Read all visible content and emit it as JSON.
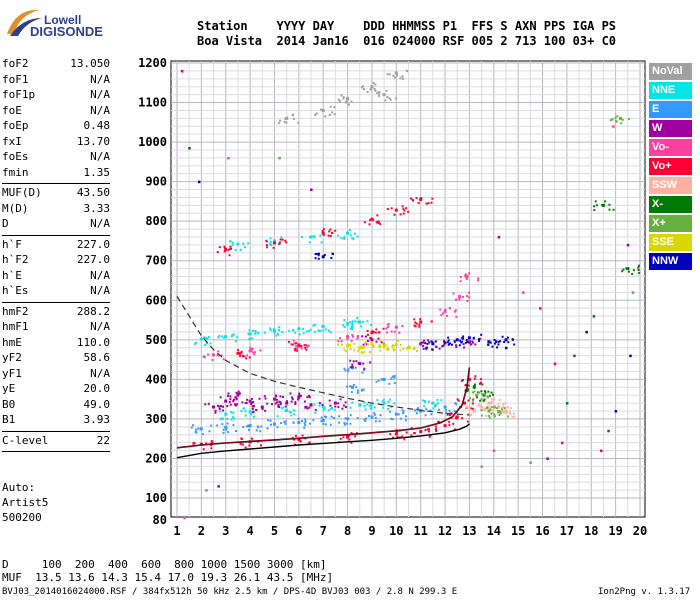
{
  "logo": {
    "line1": "Lowell",
    "line2": "DIGISONDE"
  },
  "header": {
    "line1": "Station    YYYY DAY    DDD HHMMSS P1  FFS S AXN PPS IGA PS",
    "line2": "Boa Vista  2014 Jan16  016 024000 RSF 005 2 713 100 03+ C0"
  },
  "params": {
    "group1": [
      {
        "label": "foF2",
        "value": "13.050"
      },
      {
        "label": "foF1",
        "value": "N/A"
      },
      {
        "label": "foF1p",
        "value": "N/A"
      },
      {
        "label": "foE",
        "value": "N/A"
      },
      {
        "label": "foEp",
        "value": "0.48"
      },
      {
        "label": "fxI",
        "value": "13.70"
      },
      {
        "label": "foEs",
        "value": "N/A"
      },
      {
        "label": "fmin",
        "value": "1.35"
      }
    ],
    "group2": [
      {
        "label": "MUF(D)",
        "value": "43.50"
      },
      {
        "label": "M(D)",
        "value": "3.33"
      },
      {
        "label": "D",
        "value": "N/A"
      }
    ],
    "group3": [
      {
        "label": "h`F",
        "value": "227.0"
      },
      {
        "label": "h`F2",
        "value": "227.0"
      },
      {
        "label": "h`E",
        "value": "N/A"
      },
      {
        "label": "h`Es",
        "value": "N/A"
      }
    ],
    "group4": [
      {
        "label": "hmF2",
        "value": "288.2"
      },
      {
        "label": "hmF1",
        "value": "N/A"
      },
      {
        "label": "hmE",
        "value": "110.0"
      },
      {
        "label": "yF2",
        "value": "58.6"
      },
      {
        "label": "yF1",
        "value": "N/A"
      },
      {
        "label": "yE",
        "value": "20.0"
      },
      {
        "label": "B0",
        "value": "49.0"
      },
      {
        "label": "B1",
        "value": "3.93"
      }
    ],
    "group5": [
      {
        "label": "C-level",
        "value": "22"
      }
    ]
  },
  "auto": {
    "line1": "Auto:",
    "line2": "Artist5",
    "line3": "500200"
  },
  "legend": [
    {
      "label": "NoVal",
      "color": "#a0a0a0"
    },
    {
      "label": "NNE",
      "color": "#00e5e5"
    },
    {
      "label": "E",
      "color": "#3399ff"
    },
    {
      "label": "W",
      "color": "#a000a0"
    },
    {
      "label": "Vo-",
      "color": "#ff40a0"
    },
    {
      "label": "Vo+",
      "color": "#ff0033"
    },
    {
      "label": "SSW",
      "color": "#ffb0a0"
    },
    {
      "label": "X-",
      "color": "#007a00"
    },
    {
      "label": "X+",
      "color": "#66b040"
    },
    {
      "label": "SSE",
      "color": "#d8d800"
    },
    {
      "label": "NNW",
      "color": "#0000c0"
    }
  ],
  "footer": {
    "line1": "D     100  200  400  600  800 1000 1500 3000 [km]",
    "line2": "MUF  13.5 13.6 14.3 15.4 17.0 19.3 26.1 43.5 [MHz]",
    "file": "BVJ03_2014016024000.RSF / 384fx512h 50 kHz 2.5 km / DPS-4D BVJ03 003 / 2.8 N 299.3 E",
    "version": "Ion2Png v. 1.3.17"
  },
  "chart_data": {
    "type": "scatter",
    "xlim": [
      1,
      20
    ],
    "ylim": [
      80,
      1200
    ],
    "x_ticks": [
      "1",
      "2",
      "3",
      "4",
      "5",
      "6",
      "7",
      "8",
      "9",
      "10",
      "11",
      "12",
      "13",
      "14",
      "15",
      "16",
      "17",
      "18",
      "19",
      "20"
    ],
    "y_ticks": [
      "80",
      "100",
      "200",
      "300",
      "400",
      "500",
      "600",
      "700",
      "800",
      "900",
      "1000",
      "1100",
      "1200"
    ],
    "xlabel": "",
    "ylabel": "",
    "grid": true,
    "series": [
      {
        "name": "NNE",
        "color": "#00e5e5",
        "points": [
          [
            2.0,
            502
          ],
          [
            3.0,
            508
          ],
          [
            4.0,
            515
          ],
          [
            5.0,
            522
          ],
          [
            6.0,
            528
          ],
          [
            7.0,
            534
          ],
          [
            8.0,
            540
          ],
          [
            8.5,
            545
          ],
          [
            3.5,
            742
          ],
          [
            5.0,
            750
          ],
          [
            6.5,
            760
          ],
          [
            8.0,
            770
          ],
          [
            3.0,
            312
          ],
          [
            4.0,
            318
          ],
          [
            5.5,
            322
          ],
          [
            7.0,
            330
          ],
          [
            8.5,
            335
          ],
          [
            9.5,
            340
          ],
          [
            11.5,
            340
          ]
        ]
      },
      {
        "name": "E",
        "color": "#3399ff",
        "points": [
          [
            2.0,
            275
          ],
          [
            3.0,
            279
          ],
          [
            4.0,
            283
          ],
          [
            5.0,
            287
          ],
          [
            6.0,
            291
          ],
          [
            7.0,
            296
          ],
          [
            8.0,
            300
          ],
          [
            9.0,
            305
          ],
          [
            10.0,
            312
          ],
          [
            11.0,
            320
          ],
          [
            12.0,
            330
          ],
          [
            8.2,
            380
          ],
          [
            8.2,
            430
          ],
          [
            9.5,
            400
          ]
        ]
      },
      {
        "name": "W",
        "color": "#a000a0",
        "points": [
          [
            2.5,
            330
          ],
          [
            3.0,
            345
          ],
          [
            3.5,
            360
          ],
          [
            4.0,
            345
          ],
          [
            4.5,
            330
          ],
          [
            5.0,
            350
          ],
          [
            5.5,
            340
          ],
          [
            6.0,
            355
          ],
          [
            6.5,
            335
          ],
          [
            7.5,
            340
          ],
          [
            8.5,
            440
          ],
          [
            9.0,
            500
          ],
          [
            11.0,
            490
          ],
          [
            12.0,
            492
          ],
          [
            13.0,
            495
          ]
        ]
      },
      {
        "name": "Vo-",
        "color": "#ff40a0",
        "points": [
          [
            2.5,
            462
          ],
          [
            4.0,
            472
          ],
          [
            6.0,
            488
          ],
          [
            8.0,
            508
          ],
          [
            10.0,
            532
          ],
          [
            12.0,
            572
          ],
          [
            12.6,
            610
          ],
          [
            12.9,
            660
          ]
        ]
      },
      {
        "name": "Vo+",
        "color": "#ff0033",
        "points": [
          [
            2.0,
            236
          ],
          [
            4.0,
            242
          ],
          [
            6.0,
            248
          ],
          [
            8.0,
            254
          ],
          [
            10.0,
            262
          ],
          [
            11.0,
            268
          ],
          [
            12.0,
            283
          ],
          [
            12.5,
            305
          ],
          [
            12.8,
            340
          ],
          [
            13.0,
            400
          ],
          [
            3.0,
            728
          ],
          [
            5.0,
            745
          ],
          [
            7.0,
            770
          ],
          [
            9.0,
            805
          ],
          [
            10.0,
            828
          ],
          [
            11.0,
            855
          ],
          [
            3.5,
            466
          ],
          [
            6.0,
            485
          ],
          [
            9.0,
            518
          ],
          [
            11.0,
            545
          ]
        ]
      },
      {
        "name": "SSW",
        "color": "#ffb0a0",
        "points": [
          [
            13.2,
            320
          ],
          [
            13.5,
            330
          ],
          [
            13.8,
            340
          ],
          [
            14.2,
            330
          ],
          [
            14.5,
            320
          ]
        ]
      },
      {
        "name": "X-",
        "color": "#007a00",
        "points": [
          [
            13.2,
            380
          ],
          [
            13.6,
            360
          ],
          [
            18.5,
            840
          ],
          [
            19.5,
            680
          ]
        ]
      },
      {
        "name": "X+",
        "color": "#66b040",
        "points": [
          [
            13.3,
            360
          ],
          [
            13.8,
            320
          ],
          [
            14.2,
            318
          ],
          [
            19.2,
            1060
          ]
        ]
      },
      {
        "name": "SSE",
        "color": "#d8d800",
        "points": [
          [
            8.0,
            485
          ],
          [
            8.5,
            480
          ],
          [
            9.0,
            490
          ],
          [
            9.5,
            485
          ],
          [
            10.0,
            488
          ],
          [
            10.5,
            480
          ]
        ]
      },
      {
        "name": "NNW",
        "color": "#0000c0",
        "points": [
          [
            11.5,
            490
          ],
          [
            12.5,
            500
          ],
          [
            13.0,
            505
          ],
          [
            13.8,
            495
          ],
          [
            14.5,
            500
          ],
          [
            7.0,
            710
          ]
        ]
      },
      {
        "name": "NoVal",
        "color": "#a0a0a0",
        "points": [
          [
            5.5,
            1060
          ],
          [
            7.0,
            1080
          ],
          [
            8.0,
            1110
          ],
          [
            9.0,
            1140
          ],
          [
            10.0,
            1175
          ],
          [
            9.5,
            1120
          ]
        ]
      }
    ],
    "profile_curve": [
      [
        1.0,
        202
      ],
      [
        2.0,
        213
      ],
      [
        3.0,
        219
      ],
      [
        4.0,
        224
      ],
      [
        5.0,
        229
      ],
      [
        6.0,
        234
      ],
      [
        7.0,
        238
      ],
      [
        8.0,
        242
      ],
      [
        9.0,
        246
      ],
      [
        10.0,
        251
      ],
      [
        11.0,
        257
      ],
      [
        12.0,
        265
      ],
      [
        12.6,
        274
      ],
      [
        12.9,
        282
      ],
      [
        13.0,
        288
      ]
    ],
    "trace_curve": [
      [
        1.0,
        227
      ],
      [
        2.0,
        234
      ],
      [
        3.0,
        239
      ],
      [
        4.0,
        243
      ],
      [
        5.0,
        247
      ],
      [
        6.0,
        251
      ],
      [
        7.0,
        256
      ],
      [
        8.0,
        260
      ],
      [
        9.0,
        265
      ],
      [
        10.0,
        270
      ],
      [
        11.0,
        277
      ],
      [
        11.8,
        290
      ],
      [
        12.3,
        305
      ],
      [
        12.7,
        335
      ],
      [
        12.9,
        380
      ],
      [
        13.0,
        430
      ]
    ],
    "dashed_curve": [
      [
        1.0,
        610
      ],
      [
        1.5,
        560
      ],
      [
        2.0,
        510
      ],
      [
        2.5,
        475
      ],
      [
        3.0,
        448
      ],
      [
        4.0,
        415
      ],
      [
        5.0,
        395
      ],
      [
        6.0,
        380
      ],
      [
        7.0,
        366
      ],
      [
        8.0,
        352
      ],
      [
        9.0,
        340
      ],
      [
        10.0,
        330
      ],
      [
        11.0,
        322
      ],
      [
        12.0,
        314
      ],
      [
        13.0,
        310
      ]
    ],
    "stray_dots": [
      [
        1.2,
        1180
      ],
      [
        1.5,
        985
      ],
      [
        1.9,
        900
      ],
      [
        3.1,
        960
      ],
      [
        5.2,
        960
      ],
      [
        6.5,
        880
      ],
      [
        18.4,
        220
      ],
      [
        18.7,
        270
      ],
      [
        19.0,
        320
      ],
      [
        18.9,
        1040
      ],
      [
        15.5,
        190
      ],
      [
        16.2,
        200
      ],
      [
        16.8,
        240
      ],
      [
        17.3,
        460
      ],
      [
        17.8,
        520
      ],
      [
        15.2,
        620
      ],
      [
        19.7,
        620
      ],
      [
        19.5,
        740
      ],
      [
        16.5,
        440
      ],
      [
        17.0,
        340
      ],
      [
        14.5,
        480
      ],
      [
        14.0,
        220
      ],
      [
        13.5,
        180
      ],
      [
        14.2,
        760
      ],
      [
        15.9,
        580
      ],
      [
        18.1,
        560
      ],
      [
        19.6,
        460
      ],
      [
        1.3,
        82
      ],
      [
        2.2,
        120
      ],
      [
        2.7,
        130
      ]
    ]
  }
}
